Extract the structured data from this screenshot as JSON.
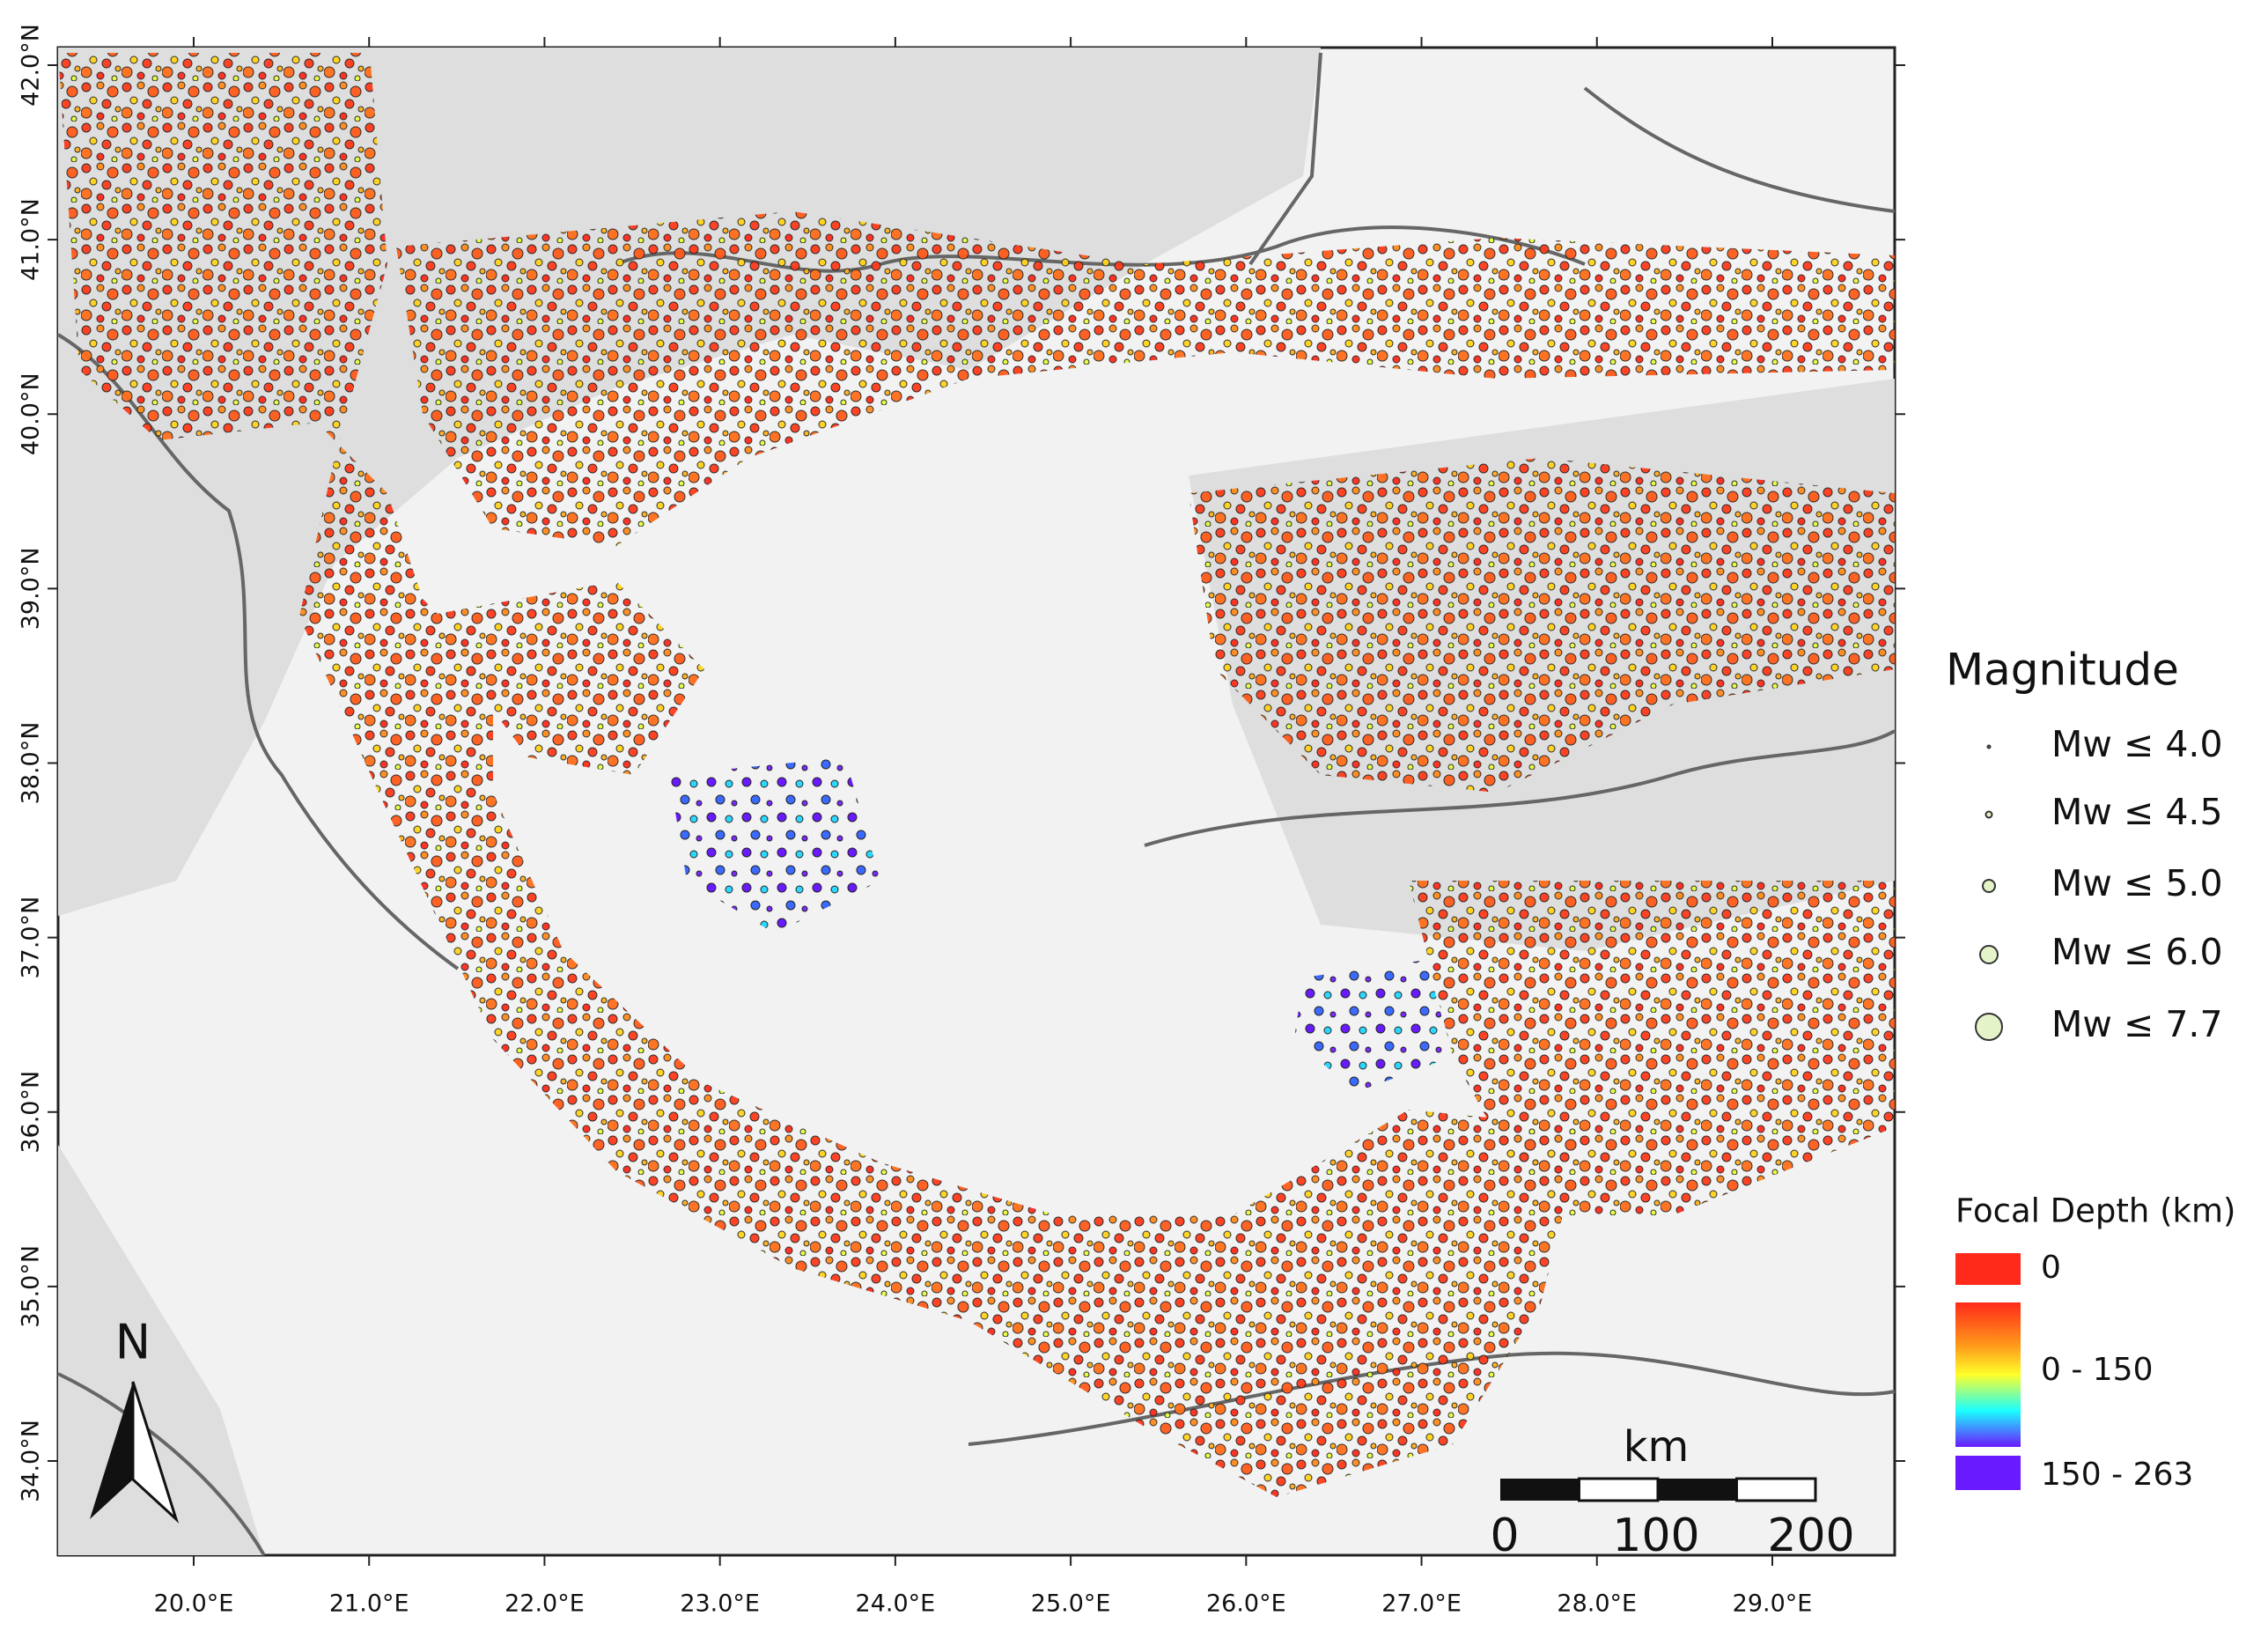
{
  "map": {
    "lat_ticks": [
      {
        "value": 42,
        "label": "42.0°N"
      },
      {
        "value": 41,
        "label": "41.0°N"
      },
      {
        "value": 40,
        "label": "40.0°N"
      },
      {
        "value": 39,
        "label": "39.0°N"
      },
      {
        "value": 38,
        "label": "38.0°N"
      },
      {
        "value": 37,
        "label": "37.0°N"
      },
      {
        "value": 36,
        "label": "36.0°N"
      },
      {
        "value": 35,
        "label": "35.0°N"
      },
      {
        "value": 34,
        "label": "34.0°N"
      }
    ],
    "lon_ticks": [
      {
        "value": 20,
        "label": "20.0°E"
      },
      {
        "value": 21,
        "label": "21.0°E"
      },
      {
        "value": 22,
        "label": "22.0°E"
      },
      {
        "value": 23,
        "label": "23.0°E"
      },
      {
        "value": 24,
        "label": "24.0°E"
      },
      {
        "value": 25,
        "label": "25.0°E"
      },
      {
        "value": 26,
        "label": "26.0°E"
      },
      {
        "value": 27,
        "label": "27.0°E"
      },
      {
        "value": 28,
        "label": "28.0°E"
      },
      {
        "value": 29,
        "label": "29.0°E"
      }
    ],
    "north_label": "N",
    "scale_bar": {
      "unit": "km",
      "labels": [
        "0",
        "100",
        "200"
      ]
    },
    "magnitude_legend": {
      "title": "Magnitude",
      "entries": [
        "Mw ≤ 4.0",
        "Mw ≤ 4.5",
        "Mw ≤ 5.0",
        "Mw ≤ 6.0",
        "Mw ≤ 7.7"
      ]
    },
    "depth_legend": {
      "title": "Focal Depth (km)",
      "entries": [
        "0",
        "0 - 150",
        "150 - 263"
      ]
    }
  }
}
